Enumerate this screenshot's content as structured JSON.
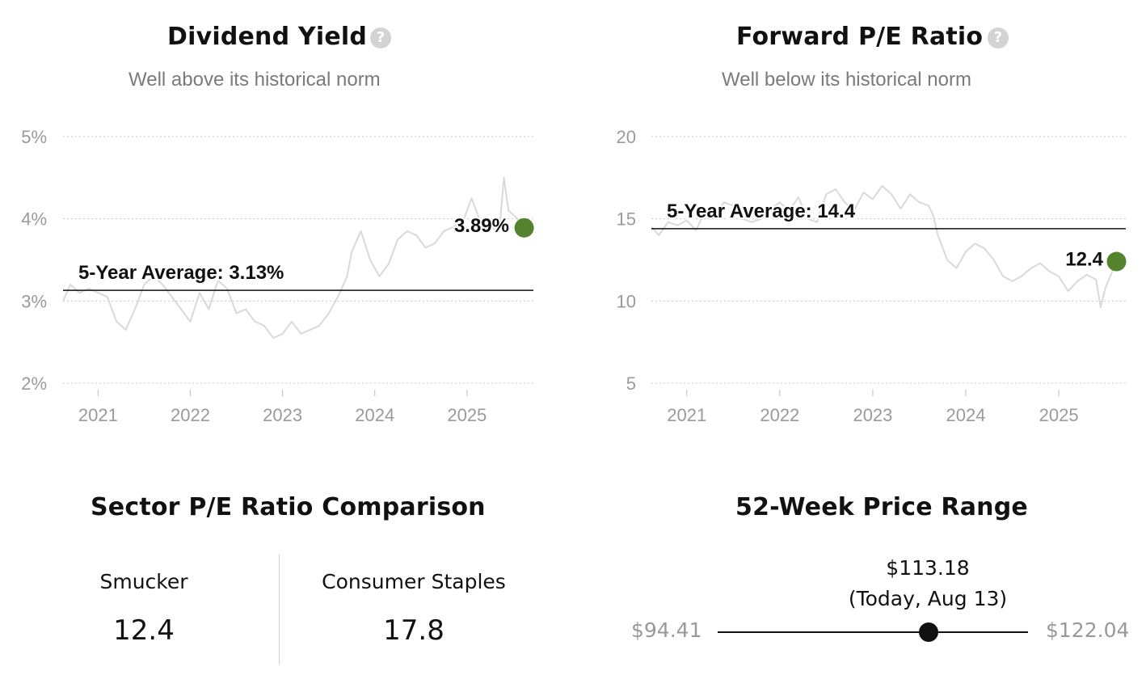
{
  "dividend_yield": {
    "title": "Dividend Yield",
    "subtitle": "Well above its historical norm",
    "help_icon": "question-circle-icon"
  },
  "forward_pe": {
    "title": "Forward P/E Ratio",
    "subtitle": "Well below its historical norm",
    "help_icon": "question-circle-icon"
  },
  "chart_data": [
    {
      "type": "line",
      "title": "Dividend Yield",
      "y_ticks": [
        "2%",
        "3%",
        "4%",
        "5%"
      ],
      "ylim": [
        2,
        5
      ],
      "y_unit": "%",
      "x_ticks": [
        "2021",
        "2022",
        "2023",
        "2024",
        "2025"
      ],
      "xlim": [
        2020.62,
        2025.72
      ],
      "grid": true,
      "average": {
        "label": "5-Year Average: 3.13%",
        "value": 3.13
      },
      "current": {
        "label": "3.89%",
        "x": 2025.62,
        "value": 3.89,
        "color": "#54822d"
      },
      "line_color": "#d9d9d9",
      "series": [
        {
          "x": [
            2020.62,
            2020.7,
            2020.8,
            2020.9,
            2021.0,
            2021.1,
            2021.2,
            2021.3,
            2021.4,
            2021.5,
            2021.6,
            2021.7,
            2021.8,
            2021.9,
            2022.0,
            2022.1,
            2022.2,
            2022.3,
            2022.4,
            2022.5,
            2022.6,
            2022.7,
            2022.8,
            2022.9,
            2023.0,
            2023.1,
            2023.2,
            2023.3,
            2023.4,
            2023.5,
            2023.6,
            2023.7,
            2023.75,
            2023.85,
            2023.95,
            2024.05,
            2024.15,
            2024.25,
            2024.35,
            2024.45,
            2024.55,
            2024.65,
            2024.75,
            2024.85,
            2024.95,
            2025.05,
            2025.15,
            2025.25,
            2025.35,
            2025.4,
            2025.45,
            2025.55,
            2025.62
          ],
          "values": [
            3.0,
            3.2,
            3.1,
            3.15,
            3.1,
            3.05,
            2.75,
            2.65,
            2.9,
            3.2,
            3.3,
            3.2,
            3.05,
            2.9,
            2.75,
            3.1,
            2.9,
            3.25,
            3.15,
            2.85,
            2.9,
            2.75,
            2.7,
            2.55,
            2.6,
            2.75,
            2.6,
            2.65,
            2.7,
            2.85,
            3.05,
            3.3,
            3.6,
            3.85,
            3.5,
            3.3,
            3.45,
            3.75,
            3.85,
            3.8,
            3.65,
            3.7,
            3.85,
            3.9,
            3.95,
            4.25,
            3.95,
            3.9,
            3.85,
            4.5,
            4.1,
            4.0,
            3.89
          ]
        }
      ]
    },
    {
      "type": "line",
      "title": "Forward P/E Ratio",
      "y_ticks": [
        "5",
        "10",
        "15",
        "20"
      ],
      "ylim": [
        5,
        20
      ],
      "x_ticks": [
        "2021",
        "2022",
        "2023",
        "2024",
        "2025"
      ],
      "xlim": [
        2020.62,
        2025.72
      ],
      "grid": true,
      "average": {
        "label": "5-Year Average: 14.4",
        "value": 14.4
      },
      "current": {
        "label": "12.4",
        "x": 2025.62,
        "value": 12.4,
        "color": "#54822d"
      },
      "line_color": "#d9d9d9",
      "series": [
        {
          "x": [
            2020.62,
            2020.7,
            2020.8,
            2020.9,
            2021.0,
            2021.1,
            2021.2,
            2021.3,
            2021.4,
            2021.5,
            2021.6,
            2021.7,
            2021.8,
            2021.9,
            2022.0,
            2022.1,
            2022.2,
            2022.3,
            2022.4,
            2022.5,
            2022.6,
            2022.7,
            2022.8,
            2022.9,
            2023.0,
            2023.1,
            2023.2,
            2023.3,
            2023.4,
            2023.5,
            2023.6,
            2023.65,
            2023.7,
            2023.8,
            2023.9,
            2024.0,
            2024.1,
            2024.2,
            2024.3,
            2024.4,
            2024.5,
            2024.6,
            2024.7,
            2024.8,
            2024.9,
            2025.0,
            2025.1,
            2025.2,
            2025.3,
            2025.4,
            2025.45,
            2025.5,
            2025.62
          ],
          "values": [
            14.5,
            14.0,
            14.8,
            14.6,
            14.9,
            14.3,
            15.5,
            15.2,
            16.0,
            15.8,
            15.0,
            14.8,
            15.0,
            15.6,
            16.0,
            15.5,
            16.3,
            15.0,
            14.8,
            16.5,
            16.8,
            16.0,
            15.5,
            16.6,
            16.2,
            17.0,
            16.5,
            15.6,
            16.5,
            16.0,
            15.8,
            15.2,
            14.0,
            12.5,
            12.0,
            13.0,
            13.5,
            13.2,
            12.5,
            11.5,
            11.2,
            11.5,
            12.0,
            12.3,
            11.8,
            11.5,
            10.6,
            11.2,
            11.6,
            11.3,
            9.6,
            10.8,
            12.4
          ]
        }
      ]
    }
  ],
  "sector": {
    "title": "Sector P/E Ratio Comparison",
    "company_label": "Smucker",
    "company_value": "12.4",
    "sector_label": "Consumer Staples",
    "sector_value": "17.8"
  },
  "range52": {
    "title": "52-Week Price Range",
    "low": "$94.41",
    "high": "$122.04",
    "current_price": "$113.18",
    "current_date": "(Today, Aug 13)",
    "low_value": 94.41,
    "high_value": 122.04,
    "current_value": 113.18
  }
}
